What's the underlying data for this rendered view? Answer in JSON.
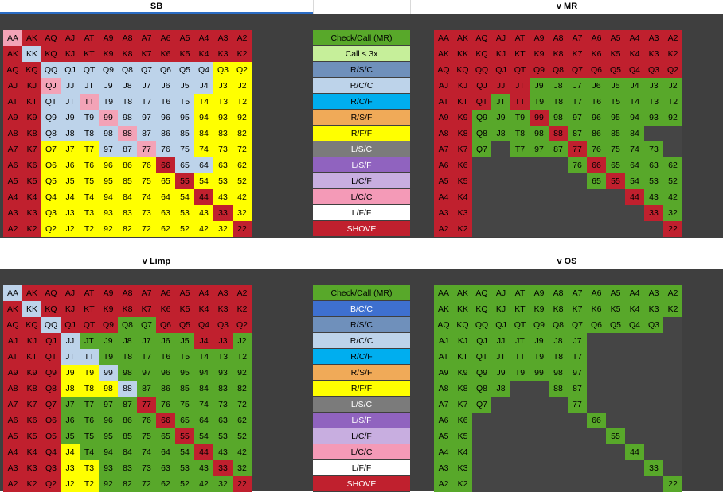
{
  "headers": {
    "sb": "SB",
    "mr": "v MR",
    "limp": "v Limp",
    "os": "v OS"
  },
  "colors": {
    "R": "#c0202e",
    "G": "#58a82a",
    "D": "#454545",
    "Y": "#ffff00",
    "L": "#bdd3ea",
    "P": "#f3a3b7",
    "V": "#7f6bb9",
    "W": "#ffffff",
    "LG": "#c6ef9a",
    "SB": "#6f90bb",
    "BL": "#00aeef",
    "OR": "#f0aa58",
    "GR": "#7b7b7b",
    "PU": "#9063bf",
    "LV": "#c8aee0",
    "PK": "#f49ab7",
    "RB": "#3e70d0"
  },
  "hands": [
    [
      "AA",
      "AK",
      "AQ",
      "AJ",
      "AT",
      "A9",
      "A8",
      "A7",
      "A6",
      "A5",
      "A4",
      "A3",
      "A2"
    ],
    [
      "AK",
      "KK",
      "KQ",
      "KJ",
      "KT",
      "K9",
      "K8",
      "K7",
      "K6",
      "K5",
      "K4",
      "K3",
      "K2"
    ],
    [
      "AQ",
      "KQ",
      "QQ",
      "QJ",
      "QT",
      "Q9",
      "Q8",
      "Q7",
      "Q6",
      "Q5",
      "Q4",
      "Q3",
      "Q2"
    ],
    [
      "AJ",
      "KJ",
      "QJ",
      "JJ",
      "JT",
      "J9",
      "J8",
      "J7",
      "J6",
      "J5",
      "J4",
      "J3",
      "J2"
    ],
    [
      "AT",
      "KT",
      "QT",
      "JT",
      "TT",
      "T9",
      "T8",
      "T7",
      "T6",
      "T5",
      "T4",
      "T3",
      "T2"
    ],
    [
      "A9",
      "K9",
      "Q9",
      "J9",
      "T9",
      "99",
      "98",
      "97",
      "96",
      "95",
      "94",
      "93",
      "92"
    ],
    [
      "A8",
      "K8",
      "Q8",
      "J8",
      "T8",
      "98",
      "88",
      "87",
      "86",
      "85",
      "84",
      "83",
      "82"
    ],
    [
      "A7",
      "K7",
      "Q7",
      "J7",
      "T7",
      "97",
      "87",
      "77",
      "76",
      "75",
      "74",
      "73",
      "72"
    ],
    [
      "A6",
      "K6",
      "Q6",
      "J6",
      "T6",
      "96",
      "86",
      "76",
      "66",
      "65",
      "64",
      "63",
      "62"
    ],
    [
      "A5",
      "K5",
      "Q5",
      "J5",
      "T5",
      "95",
      "85",
      "75",
      "65",
      "55",
      "54",
      "53",
      "52"
    ],
    [
      "A4",
      "K4",
      "Q4",
      "J4",
      "T4",
      "94",
      "84",
      "74",
      "64",
      "54",
      "44",
      "43",
      "42"
    ],
    [
      "A3",
      "K3",
      "Q3",
      "J3",
      "T3",
      "93",
      "83",
      "73",
      "63",
      "53",
      "43",
      "33",
      "32"
    ],
    [
      "A2",
      "K2",
      "Q2",
      "J2",
      "T2",
      "92",
      "82",
      "72",
      "62",
      "52",
      "42",
      "32",
      "22"
    ]
  ],
  "grids": {
    "sb": [
      "P R R R R R R R R R R R R",
      "R L R R R R R R R R R R R",
      "R R L L L L L L L L L Y Y",
      "R R P L L L L L L L L Y Y",
      "R R L L P L L L L L Y Y Y",
      "R R L L L P L L L L Y Y Y",
      "R R L L L L P L L L Y Y Y",
      "R R Y Y Y L L P L L Y Y Y",
      "R R Y Y Y Y Y Y R L L Y Y",
      "R R Y Y Y Y Y Y Y R Y Y Y",
      "R R Y Y Y Y Y Y Y Y R Y Y",
      "R R Y Y Y Y Y Y Y Y Y R Y",
      "R R Y Y Y Y Y Y Y Y Y Y R"
    ],
    "mr": [
      "R R R R R R R R R R R R R",
      "R R R R R R R R R R R R R",
      "R R R R R R R R R R R R R",
      "R R R R R G G G G G G G G",
      "R R R G R G G G G G G G G",
      "R R G G G R G G G G G G G",
      "R R G G G G R G G G G D D",
      "R R G D G G G R G G G G D",
      "R R D D D D D G R G G G G",
      "R R D D D D D D G R G G G",
      "R R D D D D D D D D R G G",
      "R R D D D D D D D D D R G",
      "R R D D D D D D D D D D R"
    ],
    "limp": [
      "L R R R R R R R R R R R R",
      "R L R R R R R R R R R R R",
      "R R L R R R G G R R R R R",
      "R R R L G G G G G G R R G",
      "R R R L L G G G G G G G G",
      "R R R Y Y L G G G G G G G",
      "R R R Y Y Y L G G G G G G",
      "R R R G G G G R G G G G G",
      "R R R G G G G G R G G G G",
      "R R R G G G G G G R G G G",
      "R R R Y G G G G G G R G G",
      "R R R Y Y G G G G G G R G",
      "R R R Y Y G G G G G G G R"
    ],
    "os": [
      "G G G G G G G G G G G G G",
      "G G G G G G G G G G G G G",
      "G G G G G G G G G G G G D",
      "G G G G G G G G D D D D D",
      "G G G G G G G G D D D D D",
      "G G G G G G G G D D D D D",
      "G G G G D D G G D D D D D",
      "G G G D D D D G D D D D D",
      "G G D D D D D D G D D D D",
      "G G D D D D D D D G D D D",
      "G G D D D D D D D D G D D",
      "G G D D D D D D D D D G D",
      "G G D D D D D D D D D D G"
    ]
  },
  "legend_top": [
    {
      "label": "Check/Call (MR)",
      "color": "G"
    },
    {
      "label": "Call ≤ 3x",
      "color": "LG"
    },
    {
      "label": "R/S/C",
      "color": "SB"
    },
    {
      "label": "R/C/C",
      "color": "L"
    },
    {
      "label": "R/C/F",
      "color": "BL"
    },
    {
      "label": "R/S/F",
      "color": "OR"
    },
    {
      "label": "R/F/F",
      "color": "Y"
    },
    {
      "label": "L/S/C",
      "color": "GR"
    },
    {
      "label": "L/S/F",
      "color": "PU"
    },
    {
      "label": "L/C/F",
      "color": "LV"
    },
    {
      "label": "L/C/C",
      "color": "PK"
    },
    {
      "label": "L/F/F",
      "color": "W"
    },
    {
      "label": "SHOVE",
      "color": "R"
    }
  ],
  "legend_bottom": [
    {
      "label": "Check/Call (MR)",
      "color": "G"
    },
    {
      "label": "B/C/C",
      "color": "RB"
    },
    {
      "label": "R/S/C",
      "color": "SB"
    },
    {
      "label": "R/C/C",
      "color": "L"
    },
    {
      "label": "R/C/F",
      "color": "BL"
    },
    {
      "label": "R/S/F",
      "color": "OR"
    },
    {
      "label": "R/F/F",
      "color": "Y"
    },
    {
      "label": "L/S/C",
      "color": "GR"
    },
    {
      "label": "L/S/F",
      "color": "PU"
    },
    {
      "label": "L/C/F",
      "color": "LV"
    },
    {
      "label": "L/C/C",
      "color": "PK"
    },
    {
      "label": "L/F/F",
      "color": "W"
    },
    {
      "label": "SHOVE",
      "color": "R"
    }
  ]
}
